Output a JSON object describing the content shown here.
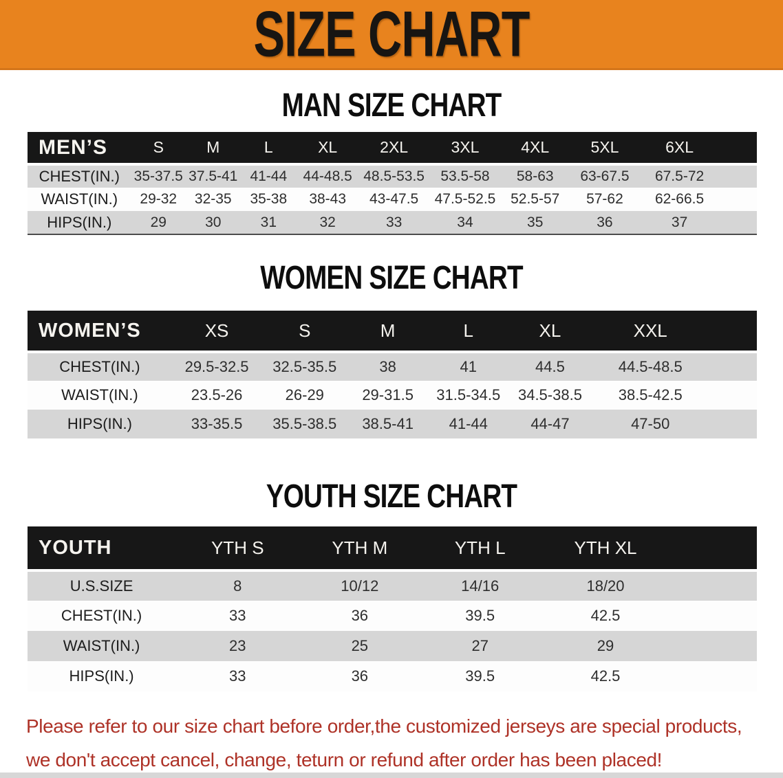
{
  "banner": {
    "title": "SIZE CHART"
  },
  "colors": {
    "banner_orange": "#E8831E",
    "table_header_black": "#171717",
    "row_stripe_gray": "#D6D6D6",
    "note_red": "#AE3227"
  },
  "men_section": {
    "heading": "MAN SIZE CHART",
    "table": {
      "header": [
        "MEN’S",
        "S",
        "M",
        "L",
        "XL",
        "2XL",
        "3XL",
        "4XL",
        "5XL",
        "6XL"
      ],
      "rows": [
        [
          "CHEST(IN.)",
          "35-37.5",
          "37.5-41",
          "41-44",
          "44-48.5",
          "48.5-53.5",
          "53.5-58",
          "58-63",
          "63-67.5",
          "67.5-72"
        ],
        [
          "WAIST(IN.)",
          "29-32",
          "32-35",
          "35-38",
          "38-43",
          "43-47.5",
          "47.5-52.5",
          "52.5-57",
          "57-62",
          "62-66.5"
        ],
        [
          "HIPS(IN.)",
          "29",
          "30",
          "31",
          "32",
          "33",
          "34",
          "35",
          "36",
          "37"
        ]
      ]
    }
  },
  "women_section": {
    "heading": "WOMEN SIZE CHART",
    "table": {
      "header": [
        "WOMEN’S",
        "XS",
        "S",
        "M",
        "L",
        "XL",
        "XXL"
      ],
      "rows": [
        [
          "CHEST(IN.)",
          "29.5-32.5",
          "32.5-35.5",
          "38",
          "41",
          "44.5",
          "44.5-48.5"
        ],
        [
          "WAIST(IN.)",
          "23.5-26",
          "26-29",
          "29-31.5",
          "31.5-34.5",
          "34.5-38.5",
          "38.5-42.5"
        ],
        [
          "HIPS(IN.)",
          "33-35.5",
          "35.5-38.5",
          "38.5-41",
          "41-44",
          "44-47",
          "47-50"
        ]
      ]
    }
  },
  "youth_section": {
    "heading": "YOUTH SIZE CHART",
    "table": {
      "header": [
        "YOUTH",
        "YTH S",
        "YTH M",
        "YTH L",
        "YTH XL"
      ],
      "rows": [
        [
          "U.S.SIZE",
          "8",
          "10/12",
          "14/16",
          "18/20"
        ],
        [
          "CHEST(IN.)",
          "33",
          "36",
          "39.5",
          "42.5"
        ],
        [
          "WAIST(IN.)",
          "23",
          "25",
          "27",
          "29"
        ],
        [
          "HIPS(IN.)",
          "33",
          "36",
          "39.5",
          "42.5"
        ]
      ]
    }
  },
  "footnote": {
    "line1": "Please refer to our size chart before order,the customized jerseys are special products,",
    "line2": "we don't accept cancel, change, teturn or refund after order has been placed!"
  }
}
